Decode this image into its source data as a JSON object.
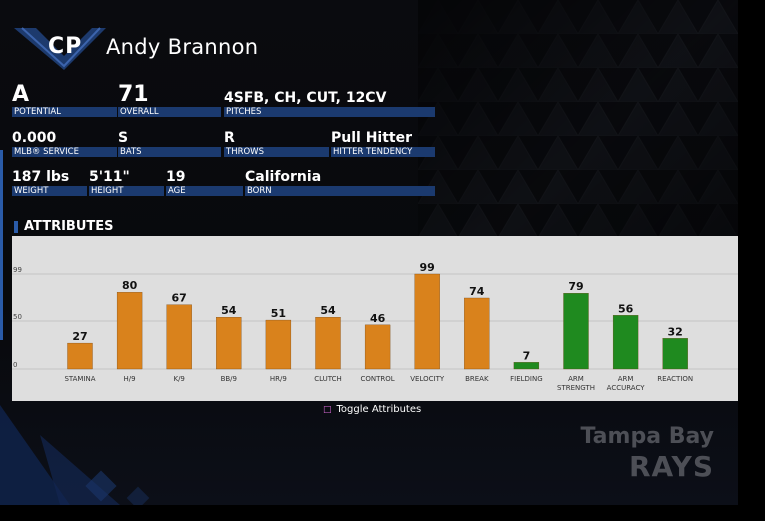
{
  "player": {
    "position": "CP",
    "name": "Andy Brannon"
  },
  "stats_row1": [
    {
      "value": "A",
      "label": "POTENTIAL"
    },
    {
      "value": "71",
      "label": "OVERALL"
    },
    {
      "value": "4SFB, CH, CUT, 12CV",
      "label": "PITCHES"
    }
  ],
  "stats_row2": [
    {
      "value": "0.000",
      "label": "MLB® SERVICE"
    },
    {
      "value": "S",
      "label": "BATS"
    },
    {
      "value": "R",
      "label": "THROWS"
    },
    {
      "value": "Pull Hitter",
      "label": "HITTER TENDENCY"
    }
  ],
  "stats_row3": [
    {
      "value": "187 lbs",
      "label": "WEIGHT"
    },
    {
      "value": "5'11\"",
      "label": "HEIGHT"
    },
    {
      "value": "19",
      "label": "AGE"
    },
    {
      "value": "California",
      "label": "BORN"
    }
  ],
  "attributes_header": "ATTRIBUTES",
  "chart_data": {
    "type": "bar",
    "categories": [
      "STAMINA",
      "H/9",
      "K/9",
      "BB/9",
      "HR/9",
      "CLUTCH",
      "CONTROL",
      "VELOCITY",
      "BREAK",
      "FIELDING",
      "ARM STRENGTH",
      "ARM ACCURACY",
      "REACTION"
    ],
    "category_lines": [
      [
        "STAMINA"
      ],
      [
        "H/9"
      ],
      [
        "K/9"
      ],
      [
        "BB/9"
      ],
      [
        "HR/9"
      ],
      [
        "CLUTCH"
      ],
      [
        "CONTROL"
      ],
      [
        "VELOCITY"
      ],
      [
        "BREAK"
      ],
      [
        "FIELDING"
      ],
      [
        "ARM",
        "STRENGTH"
      ],
      [
        "ARM",
        "ACCURACY"
      ],
      [
        "REACTION"
      ]
    ],
    "values": [
      27,
      80,
      67,
      54,
      51,
      54,
      46,
      99,
      74,
      7,
      79,
      56,
      32
    ],
    "groups": [
      "pitching",
      "pitching",
      "pitching",
      "pitching",
      "pitching",
      "pitching",
      "pitching",
      "pitching",
      "pitching",
      "fielding",
      "fielding",
      "fielding",
      "fielding"
    ],
    "y_ticks": [
      "0",
      "50",
      "99"
    ],
    "ylim": [
      0,
      99
    ],
    "grid": true,
    "colors": {
      "pitching": "#d9821c",
      "fielding": "#1f8a1f"
    }
  },
  "toggle": {
    "icon": "square-button-icon",
    "label": "Toggle Attributes"
  },
  "team": {
    "city": "Tampa Bay",
    "name": "RAYS"
  }
}
